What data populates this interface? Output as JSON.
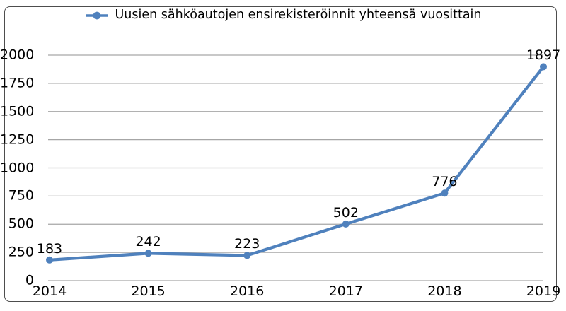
{
  "legend": {
    "label": "Uusien sähköautojen ensirekisteröinnit yhteensä vuosittain"
  },
  "colors": {
    "series": "#4f81bd",
    "gridline": "#a6a6a6",
    "frame_border": "#4d4d4d",
    "text": "#000000"
  },
  "chart_data": {
    "type": "line",
    "title": "",
    "categories": [
      "2014",
      "2015",
      "2016",
      "2017",
      "2018",
      "2019"
    ],
    "series": [
      {
        "name": "Uusien sähköautojen ensirekisteröinnit yhteensä vuosittain",
        "values": [
          183,
          242,
          223,
          502,
          776,
          1897
        ]
      }
    ],
    "data_labels": [
      "183",
      "242",
      "223",
      "502",
      "776",
      "1897"
    ],
    "xlabel": "",
    "ylabel": "",
    "ylim": [
      0,
      2000
    ],
    "yticks": [
      0,
      250,
      500,
      750,
      1000,
      1250,
      1500,
      1750,
      2000
    ],
    "grid": "horizontal",
    "legend_position": "top",
    "marker": "circle"
  }
}
